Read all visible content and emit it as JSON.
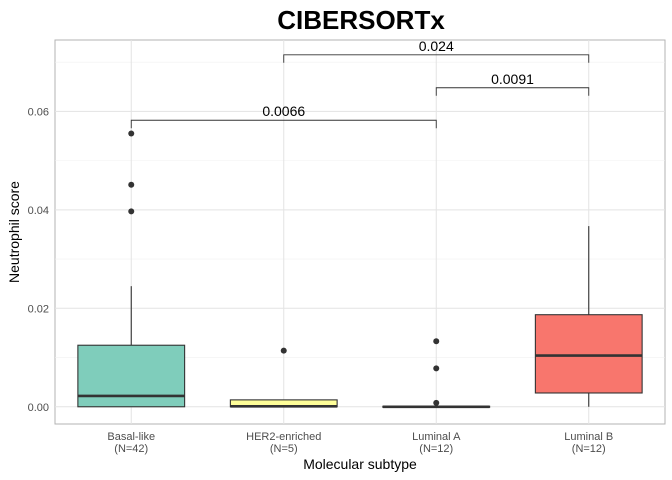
{
  "chart_data": {
    "type": "boxplot",
    "title": "CIBERSORTx",
    "xlabel": "Molecular subtype",
    "ylabel": "Neutrophil score",
    "ylim": [
      -0.0035,
      0.0745
    ],
    "yticks": [
      0.0,
      0.02,
      0.04,
      0.06
    ],
    "ytick_labels": [
      "0.00",
      "0.02",
      "0.04",
      "0.06"
    ],
    "grid": true,
    "categories": [
      {
        "name": "Basal-like",
        "n_label": "(N=42)",
        "color": "#7fcdbb",
        "q1": 0.0,
        "median": 0.0022,
        "q3": 0.0125,
        "whisker_low": 0.0,
        "whisker_high": 0.0245,
        "outliers": [
          0.0397,
          0.0451,
          0.0555
        ]
      },
      {
        "name": "HER2-enriched",
        "n_label": "(N=5)",
        "color": "#ffff99",
        "q1": 0.0,
        "median": 0.0001,
        "q3": 0.0014,
        "whisker_low": 0.0,
        "whisker_high": 0.0014,
        "outliers": [
          0.0114
        ]
      },
      {
        "name": "Luminal A",
        "n_label": "(N=12)",
        "color": "#e0e0e0",
        "q1": 0.0,
        "median": 0.0,
        "q3": 0.0001,
        "whisker_low": 0.0,
        "whisker_high": 0.0001,
        "outliers": [
          0.0008,
          0.0078,
          0.0133
        ]
      },
      {
        "name": "Luminal B",
        "n_label": "(N=12)",
        "color": "#f8766d",
        "q1": 0.0028,
        "median": 0.0104,
        "q3": 0.0187,
        "whisker_low": 0.0,
        "whisker_high": 0.0367,
        "outliers": []
      }
    ],
    "comparisons": [
      {
        "from": 0,
        "to": 2,
        "label": "0.0066",
        "y": 0.0582
      },
      {
        "from": 2,
        "to": 3,
        "label": "0.0091",
        "y": 0.0648
      },
      {
        "from": 1,
        "to": 3,
        "label": "0.024",
        "y": 0.0715
      }
    ]
  }
}
